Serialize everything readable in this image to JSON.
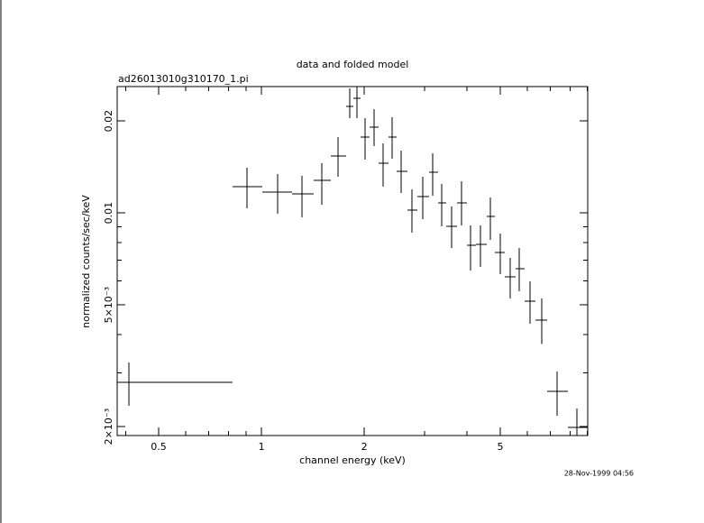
{
  "chart_data": {
    "type": "errorbar",
    "title": "data and folded model",
    "subtitle": "ad26013010g310170_1.pi",
    "xlabel": "channel energy (keV)",
    "ylabel": "normalized counts/sec/keV",
    "timestamp": "28-Nov-1999 04:56",
    "xlog": true,
    "ylog": true,
    "xlim": [
      0.378,
      9.017
    ],
    "ylim": [
      0.00187,
      0.0259
    ],
    "xticks": [
      0.5,
      1,
      2,
      5
    ],
    "xminor_ticks": [
      0.4,
      0.6,
      0.7,
      0.8,
      0.9,
      3,
      4,
      6,
      7,
      8,
      9
    ],
    "yticks": [
      {
        "value": 0.002,
        "label": "2×10⁻³"
      },
      {
        "value": 0.005,
        "label": "5×10⁻³"
      },
      0.01,
      0.02
    ],
    "yminor_ticks": [
      0.003,
      0.004,
      0.006,
      0.007,
      0.008,
      0.009
    ],
    "series": [
      {
        "color": "#000000",
        "x": [
          0.409,
          0.907,
          1.116,
          1.314,
          1.503,
          1.676,
          1.814,
          1.905,
          2.012,
          2.137,
          2.271,
          2.413,
          2.564,
          2.758,
          2.968,
          3.171,
          3.371,
          3.604,
          3.853,
          4.095,
          4.377,
          4.68,
          5.004,
          5.35,
          5.684,
          6.113,
          6.615,
          7.336,
          8.384
        ],
        "x_lo": [
          0.378,
          0.823,
          1.006,
          1.229,
          1.422,
          1.597,
          1.771,
          1.858,
          1.951,
          2.073,
          2.203,
          2.355,
          2.488,
          2.676,
          2.861,
          3.096,
          3.29,
          3.475,
          3.738,
          3.997,
          4.246,
          4.567,
          4.825,
          5.158,
          5.548,
          5.893,
          6.341,
          6.862,
          7.89
        ],
        "x_hi": [
          0.823,
          1.006,
          1.229,
          1.422,
          1.597,
          1.771,
          1.858,
          1.951,
          2.073,
          2.203,
          2.355,
          2.488,
          2.676,
          2.861,
          3.096,
          3.29,
          3.475,
          3.738,
          3.997,
          4.246,
          4.567,
          4.825,
          5.158,
          5.548,
          5.893,
          6.341,
          6.862,
          7.89,
          9.017
        ],
        "y": [
          0.00279,
          0.01218,
          0.01169,
          0.01153,
          0.01277,
          0.01534,
          0.02229,
          0.02369,
          0.01769,
          0.01906,
          0.01453,
          0.01769,
          0.01367,
          0.0102,
          0.0113,
          0.01358,
          0.01077,
          0.00903,
          0.01077,
          0.00783,
          0.00789,
          0.00973,
          0.00742,
          0.00617,
          0.00656,
          0.00514,
          0.00446,
          0.00261,
          0.00199
        ],
        "y_lo": [
          0.00234,
          0.01034,
          0.00993,
          0.00967,
          0.01063,
          0.01312,
          0.0204,
          0.0204,
          0.01493,
          0.01653,
          0.01218,
          0.01503,
          0.01161,
          0.00861,
          0.00954,
          0.01137,
          0.00903,
          0.00767,
          0.00909,
          0.00647,
          0.00665,
          0.00816,
          0.0063,
          0.00525,
          0.00554,
          0.00434,
          0.00373,
          0.00217,
          0.0017
        ],
        "y_hi": [
          0.00324,
          0.01404,
          0.01339,
          0.01321,
          0.01453,
          0.01769,
          0.02554,
          0.0259,
          0.0204,
          0.02184,
          0.01687,
          0.02054,
          0.01598,
          0.01193,
          0.01312,
          0.01566,
          0.01243,
          0.01049,
          0.01268,
          0.00909,
          0.00909,
          0.01122,
          0.00856,
          0.00712,
          0.00767,
          0.00597,
          0.00525,
          0.00303,
          0.00229
        ]
      }
    ]
  }
}
